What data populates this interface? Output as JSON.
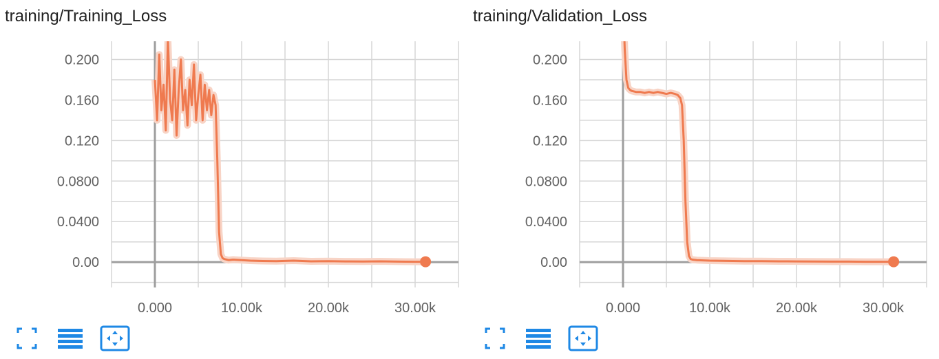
{
  "chart_data": [
    {
      "type": "line",
      "title": "training/Training_Loss",
      "xlabel": "",
      "ylabel": "",
      "xlim": [
        -5000,
        35000
      ],
      "ylim": [
        -0.025,
        0.218
      ],
      "x_ticks": [
        0,
        10000,
        20000,
        30000
      ],
      "x_tick_labels": [
        "0.000",
        "10.00k",
        "20.00k",
        "30.00k"
      ],
      "y_ticks": [
        0,
        0.04,
        0.08,
        0.12,
        0.16,
        0.2
      ],
      "y_tick_labels": [
        "0.00",
        "0.0400",
        "0.0800",
        "0.120",
        "0.160",
        "0.200"
      ],
      "grid": true,
      "color": "#ef7a4f",
      "series": [
        {
          "x": [
            0,
            250,
            500,
            750,
            1000,
            1250,
            1500,
            1750,
            2000,
            2250,
            2500,
            2750,
            3000,
            3250,
            3500,
            3750,
            4000,
            4250,
            4500,
            4750,
            5000,
            5250,
            5500,
            5750,
            6000,
            6250,
            6500,
            6750,
            7000,
            7200,
            7400,
            7600,
            7800,
            8000,
            8500,
            9000,
            10000,
            11000,
            12000,
            14000,
            16000,
            18000,
            20000,
            22000,
            24000,
            26000,
            28000,
            30000,
            31200
          ],
          "y": [
            0.18,
            0.14,
            0.205,
            0.15,
            0.175,
            0.13,
            0.22,
            0.16,
            0.14,
            0.19,
            0.125,
            0.17,
            0.2,
            0.15,
            0.17,
            0.135,
            0.18,
            0.155,
            0.195,
            0.14,
            0.165,
            0.185,
            0.14,
            0.175,
            0.15,
            0.17,
            0.145,
            0.165,
            0.155,
            0.1,
            0.03,
            0.008,
            0.004,
            0.003,
            0.002,
            0.0025,
            0.002,
            0.0015,
            0.0012,
            0.001,
            0.0015,
            0.0008,
            0.001,
            0.0007,
            0.0006,
            0.0008,
            0.0005,
            0.0004,
            0.0004
          ]
        }
      ]
    },
    {
      "type": "line",
      "title": "training/Validation_Loss",
      "xlabel": "",
      "ylabel": "",
      "xlim": [
        -5000,
        35000
      ],
      "ylim": [
        -0.025,
        0.218
      ],
      "x_ticks": [
        0,
        10000,
        20000,
        30000
      ],
      "x_tick_labels": [
        "0.000",
        "10.00k",
        "20.00k",
        "30.00k"
      ],
      "y_ticks": [
        0,
        0.04,
        0.08,
        0.12,
        0.16,
        0.2
      ],
      "y_tick_labels": [
        "0.00",
        "0.0400",
        "0.0800",
        "0.120",
        "0.160",
        "0.200"
      ],
      "grid": true,
      "color": "#ef7a4f",
      "series": [
        {
          "x": [
            0,
            200,
            400,
            600,
            800,
            1000,
            1500,
            2000,
            2500,
            3000,
            3500,
            4000,
            4500,
            5000,
            5500,
            6000,
            6300,
            6600,
            6800,
            7000,
            7200,
            7400,
            7600,
            7800,
            8000,
            8500,
            9000,
            10000,
            12000,
            14000,
            16000,
            18000,
            20000,
            22000,
            24000,
            26000,
            28000,
            30000,
            31200
          ],
          "y": [
            0.26,
            0.21,
            0.18,
            0.172,
            0.17,
            0.169,
            0.168,
            0.168,
            0.167,
            0.168,
            0.167,
            0.168,
            0.167,
            0.166,
            0.167,
            0.166,
            0.165,
            0.162,
            0.155,
            0.12,
            0.06,
            0.02,
            0.006,
            0.003,
            0.0025,
            0.002,
            0.0018,
            0.0015,
            0.0012,
            0.001,
            0.0009,
            0.0008,
            0.0007,
            0.0006,
            0.0005,
            0.0005,
            0.0004,
            0.0004,
            0.0004
          ]
        }
      ]
    }
  ],
  "toolbar_icons": [
    "fullscreen-icon",
    "list-icon",
    "fit-domain-icon"
  ],
  "colors": {
    "line": "#ef7a4f",
    "line_faint": "#f8d4c6",
    "icon": "#1e88e5",
    "grid": "#d6d6d6",
    "axis": "#9e9e9e"
  }
}
